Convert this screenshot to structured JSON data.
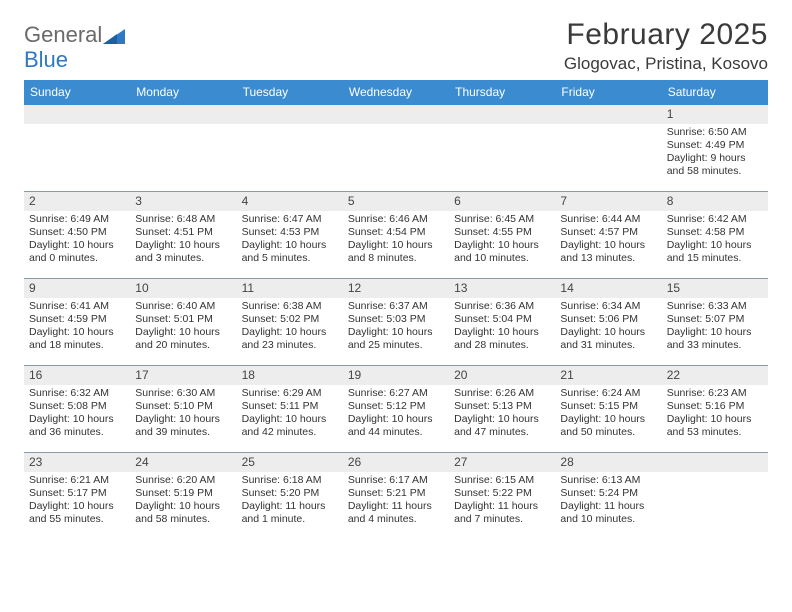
{
  "brand": {
    "text1": "General",
    "text2": "Blue"
  },
  "title": "February 2025",
  "location": "Glogovac, Pristina, Kosovo",
  "colors": {
    "header_bg": "#3b8bd0",
    "header_text": "#ffffff",
    "daynum_bg": "#ededed",
    "rule": "#8a9aa8",
    "brand_gray": "#6a6a6a",
    "brand_blue": "#2f78c3"
  },
  "day_names": [
    "Sunday",
    "Monday",
    "Tuesday",
    "Wednesday",
    "Thursday",
    "Friday",
    "Saturday"
  ],
  "weeks": [
    [
      {
        "n": "",
        "sr": "",
        "ss": "",
        "dl": ""
      },
      {
        "n": "",
        "sr": "",
        "ss": "",
        "dl": ""
      },
      {
        "n": "",
        "sr": "",
        "ss": "",
        "dl": ""
      },
      {
        "n": "",
        "sr": "",
        "ss": "",
        "dl": ""
      },
      {
        "n": "",
        "sr": "",
        "ss": "",
        "dl": ""
      },
      {
        "n": "",
        "sr": "",
        "ss": "",
        "dl": ""
      },
      {
        "n": "1",
        "sr": "Sunrise: 6:50 AM",
        "ss": "Sunset: 4:49 PM",
        "dl": "Daylight: 9 hours and 58 minutes."
      }
    ],
    [
      {
        "n": "2",
        "sr": "Sunrise: 6:49 AM",
        "ss": "Sunset: 4:50 PM",
        "dl": "Daylight: 10 hours and 0 minutes."
      },
      {
        "n": "3",
        "sr": "Sunrise: 6:48 AM",
        "ss": "Sunset: 4:51 PM",
        "dl": "Daylight: 10 hours and 3 minutes."
      },
      {
        "n": "4",
        "sr": "Sunrise: 6:47 AM",
        "ss": "Sunset: 4:53 PM",
        "dl": "Daylight: 10 hours and 5 minutes."
      },
      {
        "n": "5",
        "sr": "Sunrise: 6:46 AM",
        "ss": "Sunset: 4:54 PM",
        "dl": "Daylight: 10 hours and 8 minutes."
      },
      {
        "n": "6",
        "sr": "Sunrise: 6:45 AM",
        "ss": "Sunset: 4:55 PM",
        "dl": "Daylight: 10 hours and 10 minutes."
      },
      {
        "n": "7",
        "sr": "Sunrise: 6:44 AM",
        "ss": "Sunset: 4:57 PM",
        "dl": "Daylight: 10 hours and 13 minutes."
      },
      {
        "n": "8",
        "sr": "Sunrise: 6:42 AM",
        "ss": "Sunset: 4:58 PM",
        "dl": "Daylight: 10 hours and 15 minutes."
      }
    ],
    [
      {
        "n": "9",
        "sr": "Sunrise: 6:41 AM",
        "ss": "Sunset: 4:59 PM",
        "dl": "Daylight: 10 hours and 18 minutes."
      },
      {
        "n": "10",
        "sr": "Sunrise: 6:40 AM",
        "ss": "Sunset: 5:01 PM",
        "dl": "Daylight: 10 hours and 20 minutes."
      },
      {
        "n": "11",
        "sr": "Sunrise: 6:38 AM",
        "ss": "Sunset: 5:02 PM",
        "dl": "Daylight: 10 hours and 23 minutes."
      },
      {
        "n": "12",
        "sr": "Sunrise: 6:37 AM",
        "ss": "Sunset: 5:03 PM",
        "dl": "Daylight: 10 hours and 25 minutes."
      },
      {
        "n": "13",
        "sr": "Sunrise: 6:36 AM",
        "ss": "Sunset: 5:04 PM",
        "dl": "Daylight: 10 hours and 28 minutes."
      },
      {
        "n": "14",
        "sr": "Sunrise: 6:34 AM",
        "ss": "Sunset: 5:06 PM",
        "dl": "Daylight: 10 hours and 31 minutes."
      },
      {
        "n": "15",
        "sr": "Sunrise: 6:33 AM",
        "ss": "Sunset: 5:07 PM",
        "dl": "Daylight: 10 hours and 33 minutes."
      }
    ],
    [
      {
        "n": "16",
        "sr": "Sunrise: 6:32 AM",
        "ss": "Sunset: 5:08 PM",
        "dl": "Daylight: 10 hours and 36 minutes."
      },
      {
        "n": "17",
        "sr": "Sunrise: 6:30 AM",
        "ss": "Sunset: 5:10 PM",
        "dl": "Daylight: 10 hours and 39 minutes."
      },
      {
        "n": "18",
        "sr": "Sunrise: 6:29 AM",
        "ss": "Sunset: 5:11 PM",
        "dl": "Daylight: 10 hours and 42 minutes."
      },
      {
        "n": "19",
        "sr": "Sunrise: 6:27 AM",
        "ss": "Sunset: 5:12 PM",
        "dl": "Daylight: 10 hours and 44 minutes."
      },
      {
        "n": "20",
        "sr": "Sunrise: 6:26 AM",
        "ss": "Sunset: 5:13 PM",
        "dl": "Daylight: 10 hours and 47 minutes."
      },
      {
        "n": "21",
        "sr": "Sunrise: 6:24 AM",
        "ss": "Sunset: 5:15 PM",
        "dl": "Daylight: 10 hours and 50 minutes."
      },
      {
        "n": "22",
        "sr": "Sunrise: 6:23 AM",
        "ss": "Sunset: 5:16 PM",
        "dl": "Daylight: 10 hours and 53 minutes."
      }
    ],
    [
      {
        "n": "23",
        "sr": "Sunrise: 6:21 AM",
        "ss": "Sunset: 5:17 PM",
        "dl": "Daylight: 10 hours and 55 minutes."
      },
      {
        "n": "24",
        "sr": "Sunrise: 6:20 AM",
        "ss": "Sunset: 5:19 PM",
        "dl": "Daylight: 10 hours and 58 minutes."
      },
      {
        "n": "25",
        "sr": "Sunrise: 6:18 AM",
        "ss": "Sunset: 5:20 PM",
        "dl": "Daylight: 11 hours and 1 minute."
      },
      {
        "n": "26",
        "sr": "Sunrise: 6:17 AM",
        "ss": "Sunset: 5:21 PM",
        "dl": "Daylight: 11 hours and 4 minutes."
      },
      {
        "n": "27",
        "sr": "Sunrise: 6:15 AM",
        "ss": "Sunset: 5:22 PM",
        "dl": "Daylight: 11 hours and 7 minutes."
      },
      {
        "n": "28",
        "sr": "Sunrise: 6:13 AM",
        "ss": "Sunset: 5:24 PM",
        "dl": "Daylight: 11 hours and 10 minutes."
      },
      {
        "n": "",
        "sr": "",
        "ss": "",
        "dl": ""
      }
    ]
  ]
}
